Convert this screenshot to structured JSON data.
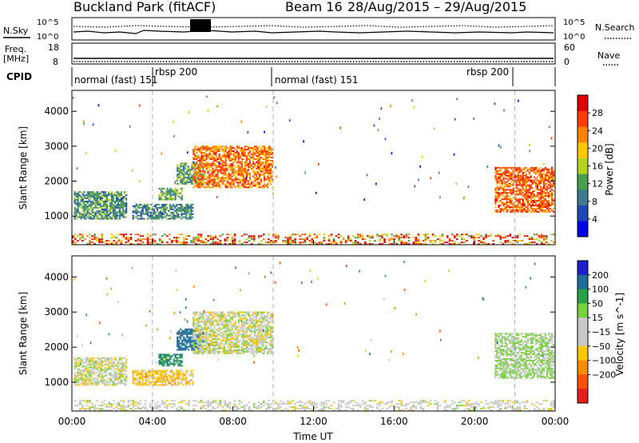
{
  "header": {
    "site": "Buckland Park (fitACF)",
    "beam": "Beam 16",
    "dates": "28/Aug/2015 – 29/Aug/2015"
  },
  "noise_panel": {
    "left_label": "N.Sky",
    "right_label": "N.Search",
    "left_ticks": [
      "10^5",
      "10^0"
    ],
    "right_ticks": [
      "10^5",
      "10^0"
    ]
  },
  "freq_panel": {
    "left_label_1": "Freq.",
    "left_label_2": "[MHz]",
    "right_label": "Nave",
    "left_ticks": [
      "18",
      "8"
    ],
    "right_ticks": [
      "60",
      "0"
    ]
  },
  "cpid_panel": {
    "label": "CPID",
    "segments": [
      {
        "label": "normal (fast) 151",
        "start_h": 0.0,
        "end_h": 4.0
      },
      {
        "label": "rbsp 200",
        "start_h": 4.0,
        "end_h": 10.0
      },
      {
        "label": "normal (fast) 151",
        "start_h": 10.0,
        "end_h": 22.0
      },
      {
        "label": "rbsp 200",
        "start_h": 22.0,
        "end_h": 24.0
      }
    ]
  },
  "colors": {
    "power_scale": [
      "#0000e6",
      "#1e46b4",
      "#3c7a8c",
      "#46a050",
      "#b4d21e",
      "#ffc800",
      "#ff8200",
      "#ff3c00",
      "#e10000"
    ],
    "velocity_scale": [
      "#1e1ecd",
      "#1e6e9b",
      "#28a046",
      "#78d23c",
      "#c8c8c8",
      "#c8c8c8",
      "#ffc800",
      "#ff8c00",
      "#ff5000",
      "#e61e1e"
    ]
  },
  "chart_data": [
    {
      "type": "heatmap",
      "name": "power",
      "xlabel": "",
      "ylabel": "Slant Range [km]",
      "xlim": [
        0,
        24
      ],
      "ylim": [
        180,
        4600
      ],
      "yticks": [
        "1000",
        "2000",
        "3000",
        "4000"
      ],
      "colorbar_label": "Power [dB]",
      "colorbar_ticks": [
        "4",
        "8",
        "12",
        "16",
        "20",
        "24",
        "28"
      ],
      "colorbar_range": [
        0,
        32
      ],
      "regions": [
        {
          "t0": 0.1,
          "t1": 2.7,
          "r0": 900,
          "r1": 1700,
          "value": 11
        },
        {
          "t0": 3.0,
          "t1": 6.0,
          "r0": 900,
          "r1": 1350,
          "value": 10
        },
        {
          "t0": 4.3,
          "t1": 5.5,
          "r0": 1450,
          "r1": 1800,
          "value": 13
        },
        {
          "t0": 5.2,
          "t1": 6.5,
          "r0": 1900,
          "r1": 2500,
          "value": 12
        },
        {
          "t0": 6.0,
          "t1": 10.0,
          "r0": 1800,
          "r1": 3000,
          "value": 24
        },
        {
          "t0": 21.0,
          "t1": 23.9,
          "r0": 1100,
          "r1": 2400,
          "value": 25
        }
      ],
      "ground_scatter_band": {
        "r0": 180,
        "r1": 480,
        "value": 20
      }
    },
    {
      "type": "heatmap",
      "name": "velocity",
      "xlabel": "Time UT",
      "ylabel": "Slant Range [km]",
      "xlim": [
        0,
        24
      ],
      "ylim": [
        180,
        4600
      ],
      "xticks": [
        "00:00",
        "04:00",
        "08:00",
        "12:00",
        "16:00",
        "20:00",
        "00:00"
      ],
      "yticks": [
        "1000",
        "2000",
        "3000",
        "4000"
      ],
      "colorbar_label": "Velocity [m s^-1]",
      "colorbar_ticks": [
        "200",
        "100",
        "50",
        "15",
        "−15",
        "−50",
        "−100",
        "−200"
      ],
      "regions": [
        {
          "t0": 0.1,
          "t1": 2.7,
          "r0": 900,
          "r1": 1700,
          "value": 0
        },
        {
          "t0": 3.0,
          "t1": 6.0,
          "r0": 900,
          "r1": 1350,
          "value": -30
        },
        {
          "t0": 4.3,
          "t1": 5.5,
          "r0": 1450,
          "r1": 1800,
          "value": 90
        },
        {
          "t0": 5.2,
          "t1": 6.5,
          "r0": 1900,
          "r1": 2500,
          "value": 150
        },
        {
          "t0": 6.0,
          "t1": 10.0,
          "r0": 1800,
          "r1": 3000,
          "value": 0
        },
        {
          "t0": 21.0,
          "t1": 23.9,
          "r0": 1100,
          "r1": 2400,
          "value": 20
        }
      ],
      "ground_scatter_band": {
        "r0": 180,
        "r1": 480,
        "value": 0
      }
    }
  ]
}
